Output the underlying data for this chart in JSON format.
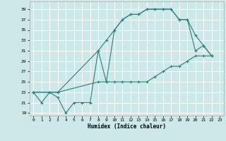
{
  "bg_color": "#cde8e8",
  "grid_color": "#ffffff",
  "line_color": "#2a7f7f",
  "xlabel": "Humidex (Indice chaleur)",
  "xlim": [
    -0.5,
    23.5
  ],
  "ylim": [
    18.5,
    40.5
  ],
  "yticks": [
    19,
    21,
    23,
    25,
    27,
    29,
    31,
    33,
    35,
    37,
    39
  ],
  "xticks": [
    0,
    1,
    2,
    3,
    4,
    5,
    6,
    7,
    8,
    9,
    10,
    11,
    12,
    13,
    14,
    15,
    16,
    17,
    18,
    19,
    20,
    21,
    22,
    23
  ],
  "line1_x": [
    0,
    1,
    2,
    3,
    4,
    5,
    6,
    7,
    8,
    9,
    10,
    11,
    12,
    13,
    14,
    15,
    16,
    17,
    18,
    19,
    20,
    21,
    22
  ],
  "line1_y": [
    23,
    21,
    23,
    22,
    19,
    21,
    21,
    21,
    31,
    25,
    35,
    37,
    38,
    38,
    39,
    39,
    39,
    39,
    37,
    37,
    31,
    32,
    30
  ],
  "line2_x": [
    0,
    3,
    8,
    9,
    10,
    11,
    12,
    13,
    14,
    15,
    16,
    17,
    18,
    19,
    20,
    21,
    22
  ],
  "line2_y": [
    23,
    23,
    31,
    33,
    35,
    37,
    38,
    38,
    39,
    39,
    39,
    39,
    37,
    37,
    34,
    32,
    30
  ],
  "line3_x": [
    0,
    3,
    8,
    9,
    10,
    11,
    12,
    13,
    14,
    15,
    16,
    17,
    18,
    19,
    20,
    21,
    22
  ],
  "line3_y": [
    23,
    23,
    25,
    25,
    25,
    25,
    25,
    25,
    25,
    26,
    27,
    28,
    28,
    29,
    30,
    30,
    30
  ]
}
